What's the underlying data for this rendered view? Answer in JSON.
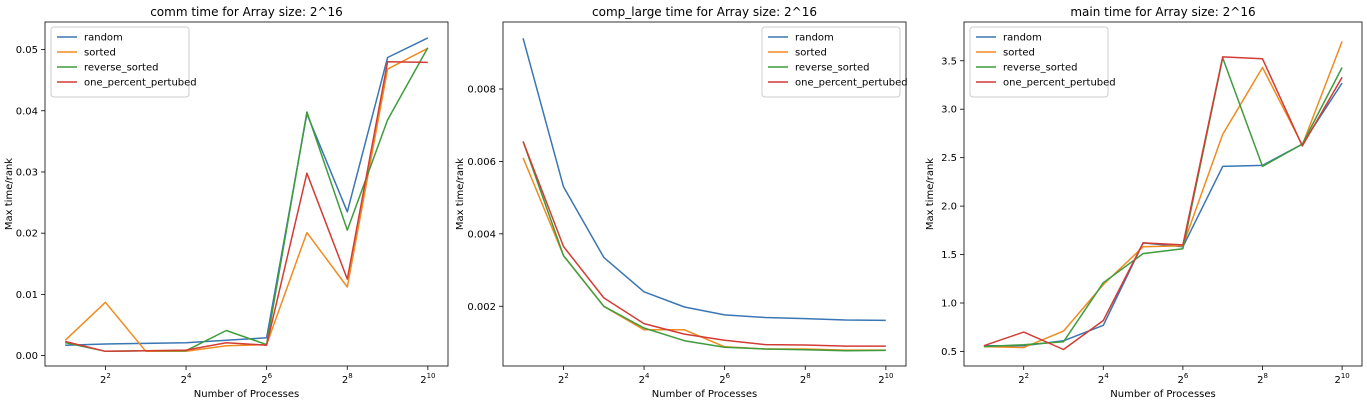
{
  "colors": {
    "random": "#3a76b3",
    "sorted": "#f08b20",
    "reverse_sorted": "#3f9c3c",
    "one_percent_pertubed": "#d23c35"
  },
  "chart_data": [
    {
      "type": "line",
      "title": "comm time for Array size: 2^16",
      "xlabel": "Number of Processes",
      "ylabel": "Max time/rank",
      "x": [
        2,
        4,
        8,
        16,
        32,
        64,
        128,
        256,
        512,
        1024
      ],
      "x_scale": "log2",
      "xticks": [
        4,
        16,
        64,
        256,
        1024
      ],
      "xtick_exponents": [
        "2",
        "4",
        "6",
        "8",
        "10"
      ],
      "xlim_log2": [
        0.5,
        10.5
      ],
      "ylim": [
        -0.0017,
        0.0545
      ],
      "yticks": [
        0,
        0.01,
        0.02,
        0.03,
        0.04,
        0.05
      ],
      "ytick_labels": [
        "0.00",
        "0.01",
        "0.02",
        "0.03",
        "0.04",
        "0.05"
      ],
      "legend_position": "top-left",
      "series": [
        {
          "name": "random",
          "key": "random",
          "values": [
            0.0017,
            0.0019,
            0.002,
            0.0021,
            0.0025,
            0.0029,
            0.0395,
            0.0235,
            0.0487,
            0.0519
          ]
        },
        {
          "name": "sorted",
          "key": "sorted",
          "values": [
            0.0025,
            0.0087,
            0.0007,
            0.0007,
            0.0016,
            0.0018,
            0.0201,
            0.0112,
            0.0468,
            0.0502
          ]
        },
        {
          "name": "reverse_sorted",
          "key": "reverse_sorted",
          "values": [
            0.0021,
            0.0007,
            0.0008,
            0.0008,
            0.0041,
            0.0018,
            0.0398,
            0.0205,
            0.0385,
            0.0503
          ]
        },
        {
          "name": "one_percent_pertubed",
          "key": "one_percent_pertubed",
          "values": [
            0.0023,
            0.0007,
            0.0008,
            0.0009,
            0.0021,
            0.0017,
            0.0298,
            0.0125,
            0.048,
            0.0479
          ]
        }
      ]
    },
    {
      "type": "line",
      "title": "comp_large time for Array size: 2^16",
      "xlabel": "Number of Processes",
      "ylabel": "Max time/rank",
      "x": [
        2,
        4,
        8,
        16,
        32,
        64,
        128,
        256,
        512,
        1024
      ],
      "x_scale": "log2",
      "xticks": [
        4,
        16,
        64,
        256,
        1024
      ],
      "xtick_exponents": [
        "2",
        "4",
        "6",
        "8",
        "10"
      ],
      "xlim_log2": [
        0.5,
        10.5
      ],
      "ylim": [
        0.00035,
        0.00985
      ],
      "yticks": [
        0.002,
        0.004,
        0.006,
        0.008
      ],
      "ytick_labels": [
        "0.002",
        "0.004",
        "0.006",
        "0.008"
      ],
      "legend_position": "top-right",
      "series": [
        {
          "name": "random",
          "key": "random",
          "values": [
            0.0094,
            0.0053,
            0.00335,
            0.0024,
            0.00198,
            0.00176,
            0.00169,
            0.00166,
            0.00162,
            0.00161
          ]
        },
        {
          "name": "sorted",
          "key": "sorted",
          "values": [
            0.0061,
            0.0034,
            0.002,
            0.00135,
            0.00135,
            0.00088,
            0.00082,
            0.00082,
            0.00079,
            0.00079
          ]
        },
        {
          "name": "reverse_sorted",
          "key": "reverse_sorted",
          "values": [
            0.00655,
            0.0034,
            0.002,
            0.0014,
            0.00105,
            0.00087,
            0.00082,
            0.0008,
            0.00077,
            0.00078
          ]
        },
        {
          "name": "one_percent_pertubed",
          "key": "one_percent_pertubed",
          "values": [
            0.00655,
            0.00365,
            0.00223,
            0.00152,
            0.00123,
            0.00106,
            0.00094,
            0.00093,
            0.0009,
            0.0009
          ]
        }
      ]
    },
    {
      "type": "line",
      "title": "main time for Array size: 2^16",
      "xlabel": "Number of Processes",
      "ylabel": "Max time/rank",
      "x": [
        2,
        4,
        8,
        16,
        32,
        64,
        128,
        256,
        512,
        1024
      ],
      "x_scale": "log2",
      "xticks": [
        4,
        16,
        64,
        256,
        1024
      ],
      "xtick_exponents": [
        "2",
        "4",
        "6",
        "8",
        "10"
      ],
      "xlim_log2": [
        0.5,
        10.5
      ],
      "ylim": [
        0.35,
        3.9
      ],
      "yticks": [
        0.5,
        1.0,
        1.5,
        2.0,
        2.5,
        3.0,
        3.5
      ],
      "ytick_labels": [
        "0.5",
        "1.0",
        "1.5",
        "2.0",
        "2.5",
        "3.0",
        "3.5"
      ],
      "legend_position": "top-left",
      "series": [
        {
          "name": "random",
          "key": "random",
          "values": [
            0.56,
            0.56,
            0.61,
            0.77,
            1.62,
            1.58,
            2.41,
            2.42,
            2.64,
            3.27
          ]
        },
        {
          "name": "sorted",
          "key": "sorted",
          "values": [
            0.55,
            0.54,
            0.71,
            1.19,
            1.58,
            1.59,
            2.74,
            3.43,
            2.63,
            3.7
          ]
        },
        {
          "name": "reverse_sorted",
          "key": "reverse_sorted",
          "values": [
            0.55,
            0.57,
            0.6,
            1.21,
            1.51,
            1.56,
            3.53,
            2.41,
            2.64,
            3.43
          ]
        },
        {
          "name": "one_percent_pertubed",
          "key": "one_percent_pertubed",
          "values": [
            0.56,
            0.7,
            0.52,
            0.82,
            1.62,
            1.6,
            3.54,
            3.52,
            2.62,
            3.33
          ]
        }
      ]
    }
  ]
}
